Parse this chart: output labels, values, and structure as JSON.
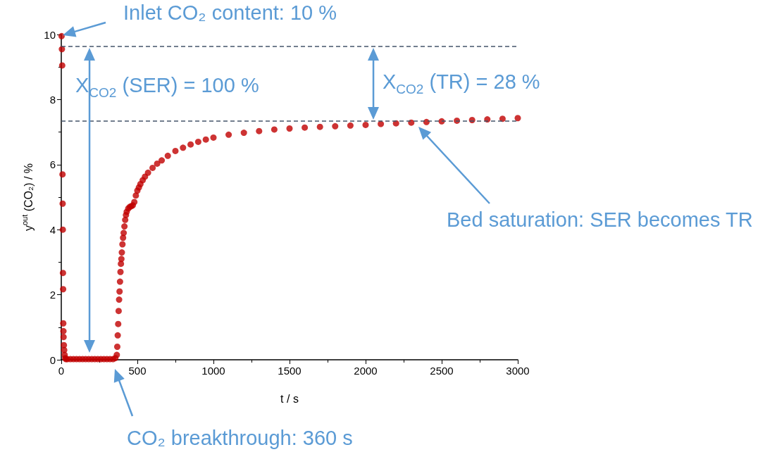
{
  "chart_data": {
    "type": "scatter",
    "xlabel": "t / s",
    "ylabel": "y$^{out}$ (CO₂) / %",
    "color": "#c00000",
    "marker": "circle",
    "x": [
      2,
      4,
      6,
      8,
      9,
      10,
      11,
      12,
      13,
      14,
      15,
      17,
      19,
      22,
      26,
      30,
      40,
      60,
      80,
      100,
      120,
      140,
      160,
      180,
      200,
      220,
      240,
      260,
      280,
      300,
      320,
      340,
      355,
      365,
      368,
      371,
      374,
      377,
      380,
      383,
      386,
      389,
      392,
      395,
      398,
      402,
      406,
      410,
      415,
      420,
      425,
      430,
      440,
      450,
      460,
      470,
      480,
      490,
      500,
      510,
      520,
      535,
      550,
      570,
      600,
      630,
      660,
      700,
      750,
      800,
      850,
      900,
      950,
      1000,
      1100,
      1200,
      1300,
      1400,
      1500,
      1600,
      1700,
      1800,
      1900,
      2000,
      2100,
      2200,
      2300,
      2400,
      2500,
      2600,
      2700,
      2800,
      2900,
      3000
    ],
    "values": [
      9.95,
      9.55,
      9.05,
      5.7,
      4.8,
      4.0,
      2.67,
      2.17,
      1.12,
      0.88,
      0.7,
      0.45,
      0.3,
      0.15,
      0.05,
      0.02,
      0.02,
      0.02,
      0.02,
      0.02,
      0.02,
      0.02,
      0.02,
      0.02,
      0.02,
      0.02,
      0.02,
      0.02,
      0.02,
      0.02,
      0.02,
      0.02,
      0.05,
      0.15,
      0.4,
      0.75,
      1.1,
      1.5,
      1.85,
      2.1,
      2.4,
      2.7,
      2.95,
      3.1,
      3.3,
      3.55,
      3.75,
      3.9,
      4.1,
      4.3,
      4.45,
      4.55,
      4.65,
      4.7,
      4.72,
      4.75,
      4.85,
      5.05,
      5.2,
      5.3,
      5.4,
      5.52,
      5.63,
      5.75,
      5.9,
      6.03,
      6.13,
      6.27,
      6.42,
      6.52,
      6.62,
      6.7,
      6.77,
      6.83,
      6.92,
      6.98,
      7.03,
      7.08,
      7.11,
      7.14,
      7.16,
      7.18,
      7.2,
      7.22,
      7.25,
      7.27,
      7.29,
      7.31,
      7.33,
      7.35,
      7.37,
      7.39,
      7.41,
      7.43
    ],
    "xlim": [
      0,
      3000
    ],
    "xticks": [
      0,
      500,
      1000,
      1500,
      2000,
      2500,
      3000
    ],
    "ylim": [
      0,
      10
    ],
    "yticks": [
      0,
      2,
      4,
      6,
      8,
      10
    ],
    "ref_lines": [
      {
        "axis": "y",
        "value": 9.63,
        "color": "#44546a",
        "line_style": "dashed"
      },
      {
        "axis": "y",
        "value": 7.34,
        "color": "#44546a",
        "line_style": "dashed"
      }
    ],
    "annotations": [
      "Inlet CO₂ content: 10 %",
      "X$_{CO2}$ (SER) = 100 %",
      "X$_{CO2}$ (TR) = 28 %",
      "Bed saturation: SER becomes TR",
      "CO₂ breakthrough: 360 s"
    ]
  }
}
